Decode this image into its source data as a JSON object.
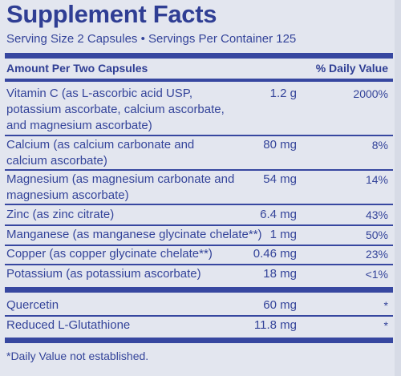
{
  "title": "Supplement Facts",
  "serving": "Serving Size 2 Capsules • Servings Per Container 125",
  "header": {
    "amount": "Amount Per Two Capsules",
    "dv": "% Daily Value"
  },
  "rows": [
    {
      "name": "Vitamin C (as L-ascorbic acid USP, potassium ascorbate, calcium ascorbate, and magnesium ascorbate)",
      "amount": "1.2 g",
      "dv": "2000%"
    },
    {
      "name": "Calcium (as calcium carbonate and calcium ascorbate)",
      "amount": "80 mg",
      "dv": "8%"
    },
    {
      "name": "Magnesium (as magnesium carbonate and magnesium ascorbate)",
      "amount": "54 mg",
      "dv": "14%"
    },
    {
      "name": "Zinc (as zinc citrate)",
      "amount": "6.4 mg",
      "dv": "43%"
    },
    {
      "name": "Manganese (as manganese glycinate chelate**)",
      "amount": "1 mg",
      "dv": "50%"
    },
    {
      "name": "Copper (as copper glycinate chelate**)",
      "amount": "0.46 mg",
      "dv": "23%"
    },
    {
      "name": "Potassium (as potassium ascorbate)",
      "amount": "18 mg",
      "dv": "<1%"
    },
    {
      "name": "Quercetin",
      "amount": "60 mg",
      "dv": "*"
    },
    {
      "name": "Reduced L-Glutathione",
      "amount": "11.8 mg",
      "dv": "*"
    }
  ],
  "footnote": "*Daily Value not established."
}
